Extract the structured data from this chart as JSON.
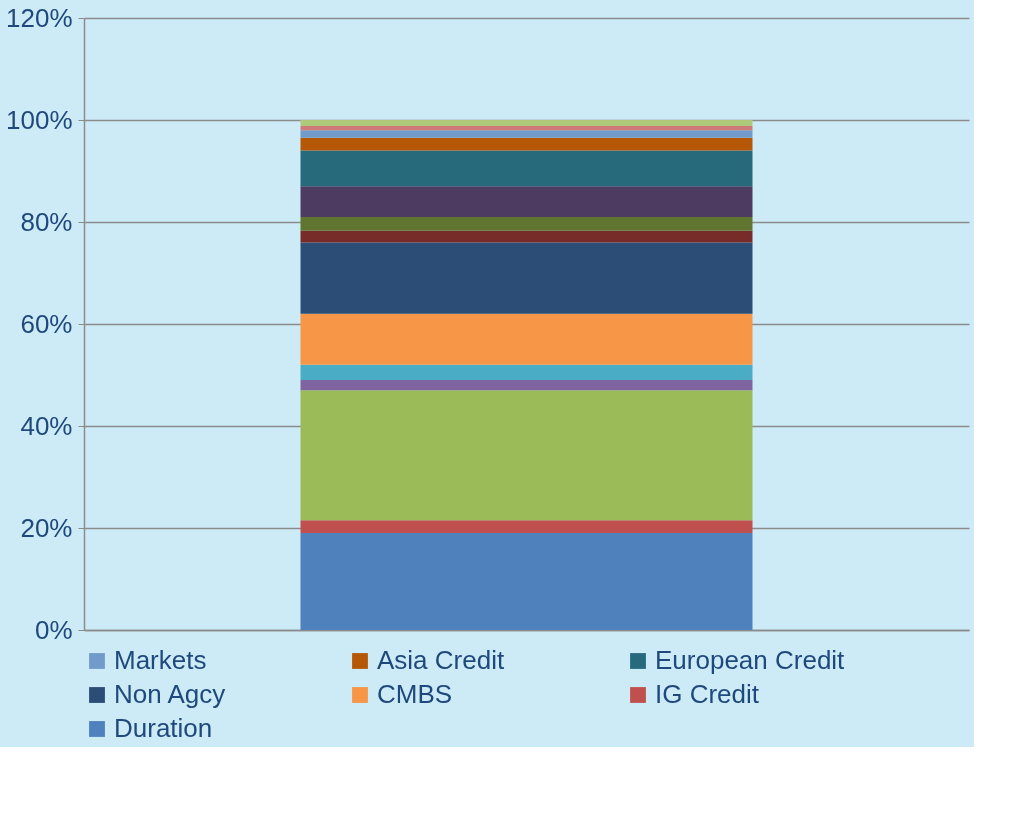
{
  "chart_data": {
    "type": "bar",
    "stacked": true,
    "categories": [
      null
    ],
    "tick_labels": "y",
    "grid": "y",
    "legend": "bottom",
    "ylim": [
      0,
      120
    ],
    "yticks": [
      {
        "value": 0,
        "label": "0%"
      },
      {
        "value": 20,
        "label": "20%"
      },
      {
        "value": 40,
        "label": "40%"
      },
      {
        "value": 60,
        "label": "60%"
      },
      {
        "value": 80,
        "label": "80%"
      },
      {
        "value": 100,
        "label": "100%"
      },
      {
        "value": 120,
        "label": "120%"
      }
    ],
    "series": [
      {
        "name": "Duration",
        "color": "#4f81bd",
        "values": [
          19
        ]
      },
      {
        "name": "IG Credit",
        "color": "#c0504d",
        "values": [
          2.5
        ]
      },
      {
        "color": "#9bbb59",
        "values": [
          25.5
        ]
      },
      {
        "color": "#8064a2",
        "values": [
          2
        ]
      },
      {
        "color": "#4bacc6",
        "values": [
          3
        ]
      },
      {
        "name": "CMBS",
        "color": "#f79646",
        "values": [
          10
        ]
      },
      {
        "name": "Non Agcy",
        "color": "#2c4d75",
        "values": [
          14
        ]
      },
      {
        "color": "#772c2a",
        "values": [
          2.3
        ]
      },
      {
        "color": "#5f7530",
        "values": [
          2.7
        ]
      },
      {
        "color": "#4d3b62",
        "values": [
          6
        ]
      },
      {
        "name": "European Credit",
        "color": "#276a7c",
        "values": [
          7
        ]
      },
      {
        "name": "Asia Credit",
        "color": "#b65708",
        "values": [
          2.5
        ]
      },
      {
        "name": "Markets",
        "color": "#729aca",
        "values": [
          1.5
        ]
      },
      {
        "color": "#d07b79",
        "values": [
          0.8
        ]
      },
      {
        "color": "#afc97a",
        "values": [
          1.2
        ]
      }
    ]
  }
}
